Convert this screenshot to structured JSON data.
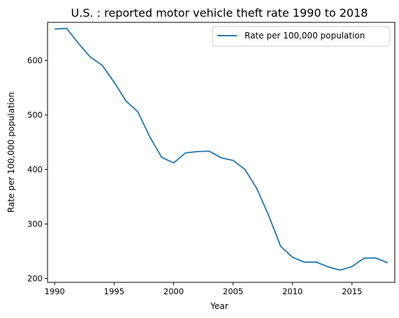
{
  "chart_data": {
    "type": "line",
    "title": "U.S. : reported motor vehicle theft rate 1990 to 2018",
    "xlabel": "Year",
    "ylabel": "Rate per 100,000 population",
    "xlim": [
      1989.4,
      2018.6
    ],
    "ylim": [
      193,
      670
    ],
    "xticks": [
      1990,
      1995,
      2000,
      2005,
      2010,
      2015
    ],
    "yticks": [
      200,
      300,
      400,
      500,
      600
    ],
    "grid": false,
    "legend_position": "top-right",
    "series": [
      {
        "name": "Rate per 100,000 population",
        "color": "#1f77b4",
        "x": [
          1990,
          1991,
          1992,
          1993,
          1994,
          1995,
          1996,
          1997,
          1998,
          1999,
          2000,
          2001,
          2002,
          2003,
          2004,
          2005,
          2006,
          2007,
          2008,
          2009,
          2010,
          2011,
          2012,
          2013,
          2014,
          2015,
          2016,
          2017,
          2018
        ],
        "y": [
          657.8,
          659.0,
          631.6,
          606.3,
          591.3,
          560.3,
          525.7,
          505.7,
          459.9,
          422.5,
          412.2,
          430.5,
          432.9,
          433.7,
          421.5,
          416.8,
          400.2,
          364.9,
          315.4,
          259.2,
          239.1,
          230.0,
          230.2,
          221.3,
          215.4,
          221.8,
          237.3,
          237.7,
          228.9
        ]
      }
    ]
  }
}
